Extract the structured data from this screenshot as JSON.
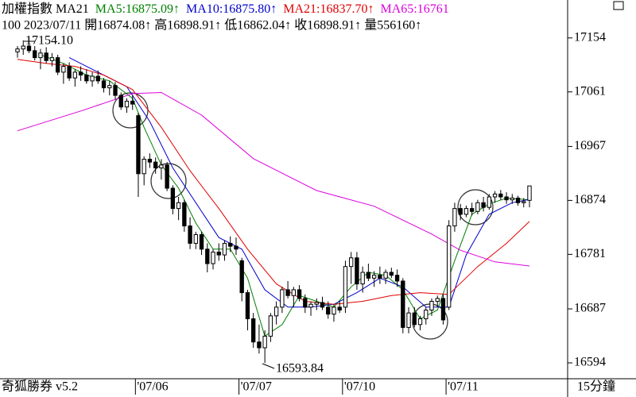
{
  "chart_data": {
    "type": "candlestick",
    "title": "加權指數 MA21",
    "info": "100 2023/07/11 開16874.08↑ 高16898.91↑ 低16862.04↑ 收16898.91↑ 量556160↑",
    "footer_left": "奇狐勝券 v5.2",
    "footer_right": "15分鐘",
    "annotations": [
      "17154.10",
      "16593.84"
    ],
    "ylim": [
      16568,
      17192
    ],
    "yticks": [
      17154,
      17061,
      16967,
      16874,
      16781,
      16687,
      16594
    ],
    "up_color": "#ffffff",
    "down_color": "#000000",
    "categories": [
      null,
      null,
      null,
      null,
      null,
      null,
      null,
      null,
      null,
      null,
      null,
      null,
      null,
      null,
      null,
      null,
      null,
      null,
      null,
      null,
      null,
      "'07/06",
      null,
      null,
      null,
      null,
      null,
      null,
      null,
      null,
      null,
      null,
      null,
      null,
      null,
      null,
      null,
      null,
      null,
      "'07/07",
      null,
      null,
      null,
      null,
      null,
      null,
      null,
      null,
      null,
      null,
      null,
      null,
      null,
      null,
      null,
      null,
      null,
      "'07/10",
      null,
      null,
      null,
      null,
      null,
      null,
      null,
      null,
      null,
      null,
      null,
      null,
      null,
      null,
      null,
      null,
      null,
      "'07/11",
      null,
      null,
      null,
      null,
      null,
      null,
      null,
      null,
      null,
      null,
      null,
      null,
      null,
      null
    ],
    "open": [
      17130,
      17135,
      17140,
      17132,
      17120,
      17128,
      17115,
      17120,
      17095,
      17105,
      17085,
      17095,
      17090,
      17080,
      17088,
      17080,
      17068,
      17072,
      17055,
      17035,
      17045,
      17020,
      16920,
      16945,
      16940,
      16930,
      16935,
      16895,
      16860,
      16870,
      16830,
      16800,
      16815,
      16790,
      16765,
      16785,
      16780,
      16800,
      16795,
      16770,
      16715,
      16670,
      16630,
      16620,
      16640,
      16675,
      16690,
      16720,
      16710,
      16720,
      16705,
      16690,
      16695,
      16698,
      16690,
      16678,
      16690,
      16690,
      16760,
      16775,
      16730,
      16750,
      16740,
      16745,
      16740,
      16750,
      16745,
      16735,
      16655,
      16680,
      16660,
      16670,
      16685,
      16700,
      16705,
      16690,
      16830,
      16860,
      16850,
      16860,
      16855,
      16870,
      16862,
      16880,
      16885,
      16880,
      16875,
      16878,
      16870,
      16874.08
    ],
    "high": [
      17140,
      17150,
      17154.1,
      17140,
      17135,
      17138,
      17128,
      17125,
      17110,
      17112,
      17100,
      17105,
      17100,
      17095,
      17098,
      17085,
      17080,
      17078,
      17060,
      17050,
      17055,
      17025,
      16950,
      16955,
      16948,
      16945,
      16940,
      16900,
      16880,
      16875,
      16845,
      16820,
      16820,
      16800,
      16790,
      16800,
      16805,
      16812,
      16810,
      16775,
      16720,
      16680,
      16660,
      16650,
      16680,
      16700,
      16725,
      16735,
      16725,
      16728,
      16712,
      16700,
      16705,
      16708,
      16700,
      16695,
      16700,
      16770,
      16785,
      16785,
      16760,
      16765,
      16752,
      16760,
      16755,
      16758,
      16755,
      16740,
      16690,
      16690,
      16675,
      16690,
      16705,
      16710,
      16712,
      16840,
      16870,
      16868,
      16865,
      16870,
      16875,
      16880,
      16885,
      16890,
      16892,
      16888,
      16885,
      16882,
      16878,
      16898.91
    ],
    "low": [
      17120,
      17125,
      17128,
      17115,
      17100,
      17110,
      17105,
      17090,
      17075,
      17080,
      17070,
      17080,
      17075,
      17070,
      17075,
      17060,
      17055,
      17048,
      17030,
      17025,
      17030,
      16880,
      16900,
      16930,
      16920,
      16910,
      16890,
      16850,
      16840,
      16820,
      16790,
      16790,
      16780,
      16750,
      16755,
      16770,
      16770,
      16785,
      16780,
      16700,
      16650,
      16620,
      16610,
      16593.84,
      16630,
      16660,
      16680,
      16705,
      16690,
      16700,
      16680,
      16675,
      16685,
      16685,
      16670,
      16665,
      16680,
      16680,
      16730,
      16720,
      16715,
      16735,
      16725,
      16730,
      16730,
      16740,
      16725,
      16645,
      16645,
      16655,
      16650,
      16660,
      16675,
      16690,
      16660,
      16685,
      16820,
      16840,
      16845,
      16848,
      16850,
      16855,
      16858,
      16870,
      16875,
      16868,
      16868,
      16865,
      16862,
      16862.04
    ],
    "close": [
      17135,
      17140,
      17132,
      17120,
      17128,
      17115,
      17120,
      17095,
      17105,
      17085,
      17095,
      17090,
      17080,
      17088,
      17080,
      17068,
      17072,
      17055,
      17035,
      17045,
      17040,
      16920,
      16945,
      16940,
      16930,
      16935,
      16895,
      16860,
      16870,
      16830,
      16800,
      16815,
      16790,
      16765,
      16785,
      16780,
      16800,
      16795,
      16790,
      16715,
      16670,
      16630,
      16620,
      16640,
      16675,
      16690,
      16720,
      16710,
      16720,
      16705,
      16690,
      16695,
      16698,
      16690,
      16678,
      16690,
      16685,
      16760,
      16775,
      16730,
      16750,
      16740,
      16745,
      16740,
      16750,
      16745,
      16735,
      16655,
      16680,
      16660,
      16670,
      16685,
      16700,
      16705,
      16668,
      16830,
      16860,
      16850,
      16860,
      16855,
      16870,
      16862,
      16880,
      16885,
      16880,
      16875,
      16878,
      16870,
      16872,
      16898.91
    ],
    "series": [
      {
        "label": "MA5:16875.09↑",
        "color": "#008000",
        "x": [
          4,
          8,
          12,
          16,
          20,
          22,
          25,
          28,
          31,
          34,
          37,
          40,
          43,
          46,
          49,
          52,
          55,
          58,
          61,
          64,
          67,
          70,
          73,
          76,
          79,
          82,
          85,
          89
        ],
        "values": [
          17125,
          17110,
          17090,
          17080,
          17050,
          17000,
          16935,
          16895,
          16835,
          16790,
          16790,
          16740,
          16640,
          16660,
          16710,
          16700,
          16690,
          16725,
          16750,
          16745,
          16720,
          16670,
          16685,
          16770,
          16850,
          16868,
          16878,
          16875.09
        ]
      },
      {
        "label": "MA10:16875.80↑",
        "color": "#0000cc",
        "x": [
          9,
          14,
          19,
          23,
          27,
          31,
          35,
          39,
          43,
          47,
          51,
          55,
          59,
          63,
          67,
          71,
          75,
          78,
          82,
          86,
          89
        ],
        "values": [
          17120,
          17095,
          17070,
          17010,
          16930,
          16870,
          16810,
          16790,
          16720,
          16690,
          16690,
          16695,
          16715,
          16740,
          16725,
          16690,
          16690,
          16780,
          16850,
          16870,
          16875.8
        ]
      },
      {
        "label": "MA21:16837.70↑",
        "color": "#e00000",
        "x": [
          0,
          5,
          10,
          15,
          20,
          25,
          30,
          35,
          40,
          45,
          50,
          55,
          60,
          65,
          70,
          75,
          80,
          85,
          89
        ],
        "values": [
          17117,
          17110,
          17105,
          17090,
          17065,
          17000,
          16925,
          16860,
          16790,
          16730,
          16700,
          16695,
          16700,
          16710,
          16715,
          16712,
          16760,
          16800,
          16837.7
        ]
      },
      {
        "label": "MA65:16761",
        "color": "#dd00dd",
        "x": [
          0,
          11,
          20,
          25,
          32,
          41,
          52,
          62,
          72,
          77,
          83,
          89
        ],
        "values": [
          16994,
          17028,
          17058,
          17060,
          17021,
          16946,
          16891,
          16864,
          16816,
          16788,
          16768,
          16761
        ]
      }
    ]
  }
}
